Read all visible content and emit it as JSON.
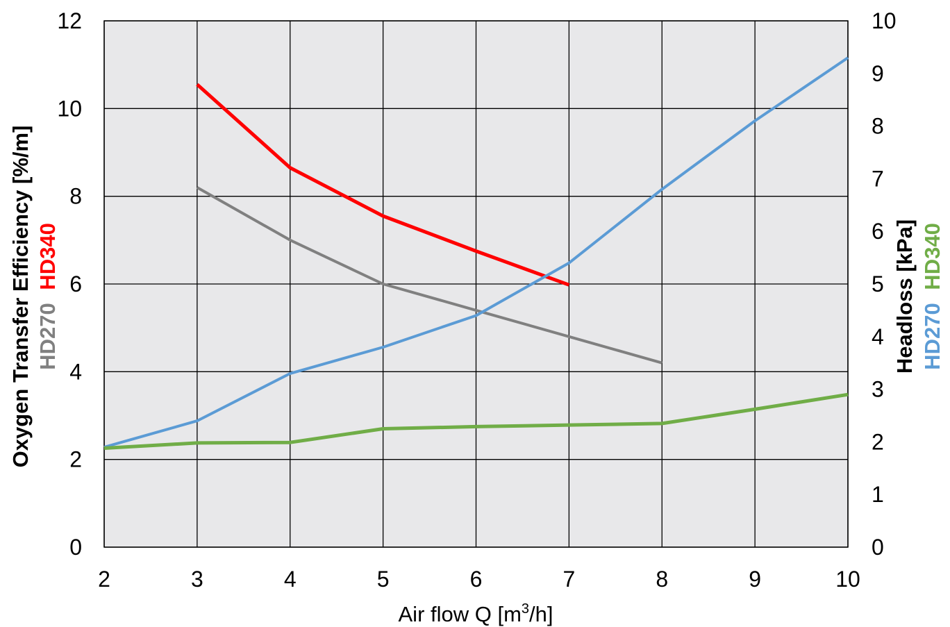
{
  "chart_data": {
    "type": "line",
    "x_axis": {
      "label_prefix": "Air flow Q [m",
      "label_sup": "3",
      "label_suffix": "/h]",
      "range": [
        2,
        10
      ],
      "ticks": [
        "2",
        "3",
        "4",
        "5",
        "6",
        "7",
        "8",
        "9",
        "10"
      ]
    },
    "y_left": {
      "title": "Oxygen Transfer Efficiency [%/m]",
      "title_series": [
        {
          "text": "HD270",
          "color": "#808080"
        },
        {
          "text": "HD340",
          "color": "#ff0000"
        }
      ],
      "range": [
        0,
        12
      ],
      "ticks": [
        "0",
        "2",
        "4",
        "6",
        "8",
        "10",
        "12"
      ]
    },
    "y_right": {
      "title": "Headloss [kPa]",
      "title_series": [
        {
          "text": "HD270",
          "color": "#5b9bd5"
        },
        {
          "text": "HD340",
          "color": "#70ad47"
        }
      ],
      "range": [
        0,
        10
      ],
      "ticks": [
        "0",
        "1",
        "2",
        "3",
        "4",
        "5",
        "6",
        "7",
        "8",
        "9",
        "10"
      ]
    },
    "grid": true,
    "legend": "none",
    "series": [
      {
        "name": "HD270",
        "axis": "left",
        "color": "#808080",
        "width": 4,
        "x": [
          3,
          4,
          5,
          6,
          7,
          8
        ],
        "y": [
          8.2,
          7.0,
          6.0,
          5.4,
          4.8,
          4.2
        ]
      },
      {
        "name": "HD340",
        "axis": "left",
        "color": "#ff0000",
        "width": 5,
        "x": [
          3,
          4,
          5,
          6,
          7
        ],
        "y": [
          10.55,
          8.65,
          7.55,
          6.75,
          5.98
        ]
      },
      {
        "name": "HD270",
        "axis": "right",
        "color": "#5b9bd5",
        "width": 4,
        "x": [
          2,
          3,
          4,
          5,
          6,
          7,
          8,
          9,
          10
        ],
        "y": [
          1.9,
          2.4,
          3.3,
          3.8,
          4.4,
          5.4,
          6.8,
          8.1,
          9.3
        ]
      },
      {
        "name": "HD340",
        "axis": "right",
        "color": "#70ad47",
        "width": 5,
        "x": [
          2,
          3,
          4,
          5,
          6,
          7,
          8,
          9,
          10
        ],
        "y": [
          1.88,
          1.98,
          1.99,
          2.25,
          2.29,
          2.32,
          2.35,
          2.62,
          2.9
        ]
      }
    ]
  }
}
